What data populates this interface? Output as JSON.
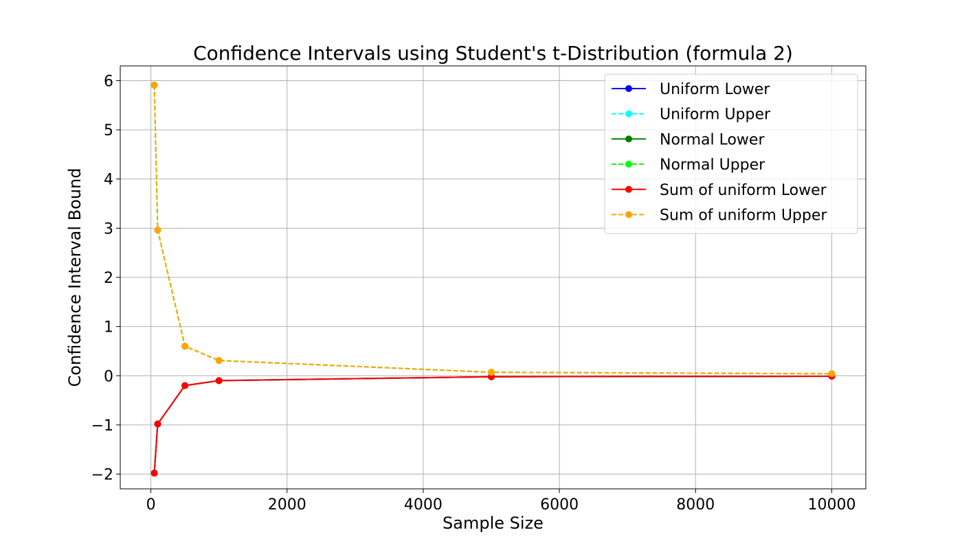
{
  "chart_data": {
    "type": "line",
    "title": "Confidence Intervals using Student's t-Distribution (formula 2)",
    "xlabel": "Sample Size",
    "ylabel": "Confidence Interval Bound",
    "xlim": [
      -450,
      10500
    ],
    "ylim": [
      -2.3,
      6.3
    ],
    "grid": true,
    "legend_position": "top-right",
    "x_ticks": [
      0,
      2000,
      4000,
      6000,
      8000,
      10000
    ],
    "x_tick_labels": [
      "0",
      "2000",
      "4000",
      "6000",
      "8000",
      "10000"
    ],
    "y_ticks": [
      -2,
      -1,
      0,
      1,
      2,
      3,
      4,
      5,
      6
    ],
    "y_tick_labels": [
      "−2",
      "−1",
      "0",
      "1",
      "2",
      "3",
      "4",
      "5",
      "6"
    ],
    "x": [
      50,
      100,
      500,
      1000,
      5000,
      10000
    ],
    "series": [
      {
        "name": "Uniform Lower",
        "color": "#0000ff",
        "dash": "solid",
        "values": [
          -1.98,
          -0.98,
          -0.2,
          -0.1,
          -0.02,
          -0.01
        ]
      },
      {
        "name": "Uniform Upper",
        "color": "#00ffff",
        "dash": "dashed",
        "values": [
          5.91,
          2.96,
          0.6,
          0.31,
          0.07,
          0.04
        ]
      },
      {
        "name": "Normal Lower",
        "color": "#008000",
        "dash": "solid",
        "values": [
          -1.98,
          -0.98,
          -0.2,
          -0.1,
          -0.02,
          -0.01
        ]
      },
      {
        "name": "Normal Upper",
        "color": "#00ff00",
        "dash": "dashed",
        "values": [
          5.91,
          2.96,
          0.6,
          0.31,
          0.07,
          0.04
        ]
      },
      {
        "name": "Sum of uniform Lower",
        "color": "#ff0000",
        "dash": "solid",
        "values": [
          -1.98,
          -0.98,
          -0.2,
          -0.1,
          -0.02,
          -0.01
        ]
      },
      {
        "name": "Sum of uniform Upper",
        "color": "#ffa500",
        "dash": "dashed",
        "values": [
          5.91,
          2.96,
          0.6,
          0.31,
          0.07,
          0.04
        ]
      }
    ]
  }
}
